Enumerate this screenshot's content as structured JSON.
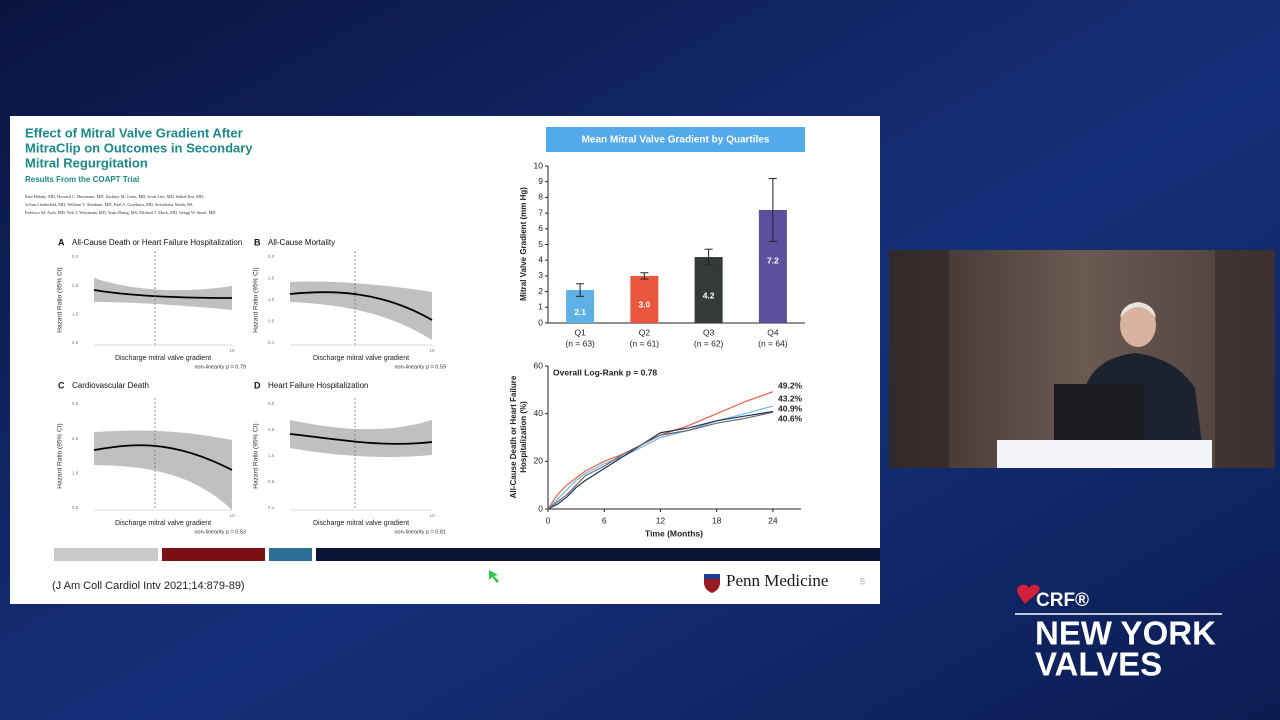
{
  "slide": {
    "title_lines": [
      "Effect of Mitral Valve Gradient After",
      "MitraClip on Outcomes in Secondary",
      "Mitral Regurgitation"
    ],
    "subtitle": "Results From the COAPT Trial",
    "authors": [
      "Kim Halaby, MD, Howard C. Herrmann, MD, Zachary M. Gertz, MD, Scott Lim, MD, Saibal Kar, MD,",
      "JoAnn Lindenfeld, MD, William T. Abraham, MD, Paul A. Grayburn, MD, Suveeksha Naidu, BS,",
      "Federico M. Asch, MD, Neil J. Weissman, MD, Yuan Zhang, MS, Michael J. Mack, MD, Gregg W. Stone, MD"
    ],
    "panels": [
      {
        "letter": "A",
        "title": "All-Cause Death or Heart Failure Hospitalization",
        "y_label": "Hazard Ratio (95% CI)",
        "x_label": "Discharge mitral valve gradient",
        "note": "non-linearity p = 0.79",
        "y_tick_labels": [
          "5.0",
          "2.5",
          "1.0",
          "0.5"
        ],
        "x_tick_labels": [
          "10"
        ]
      },
      {
        "letter": "B",
        "title": "All-Cause Mortality",
        "y_label": "Hazard Ratio (95% CI)",
        "x_label": "Discharge mitral valve gradient",
        "note": "non-linearity p = 0.59",
        "y_tick_labels": [
          "5.0",
          "2.5",
          "1.0",
          "0.5",
          "0.1"
        ],
        "x_tick_labels": [
          "10"
        ]
      },
      {
        "letter": "C",
        "title": "Cardiovascular Death",
        "y_label": "Hazard Ratio (95% CI)",
        "x_label": "Discharge mitral valve gradient",
        "note": "non-linearity p = 0.53",
        "y_tick_labels": [
          "5.0",
          "2.5",
          "1.0",
          "0.5"
        ],
        "x_tick_labels": [
          "10"
        ]
      },
      {
        "letter": "D",
        "title": "Heart Failure Hospitalization",
        "y_label": "Hazard Ratio (95% CI)",
        "x_label": "Discharge mitral valve gradient",
        "note": "non-linearity p = 0.81",
        "y_tick_labels": [
          "5.0",
          "2.5",
          "1.0",
          "0.5",
          "0.1"
        ],
        "x_tick_labels": [
          "10"
        ]
      }
    ],
    "bar_chart": {
      "title": "Mean Mitral Valve Gradient by Quartiles",
      "y_label": "Mitral Valve Gradient (mm Hg)",
      "ylim": [
        0,
        10
      ],
      "yticks": [
        0,
        1,
        2,
        3,
        4,
        5,
        6,
        7,
        8,
        9,
        10
      ],
      "categories": [
        "Q1",
        "Q2",
        "Q3",
        "Q4"
      ],
      "sublabels": [
        "(n = 63)",
        "(n = 61)",
        "(n = 62)",
        "(n = 64)"
      ],
      "values": [
        2.1,
        3.0,
        4.2,
        7.2
      ],
      "value_labels": [
        "2.1",
        "3.0",
        "4.2",
        "7.2"
      ],
      "errors": [
        0.4,
        0.2,
        0.5,
        2.0
      ],
      "colors": [
        "#5db1e4",
        "#e9573f",
        "#34393a",
        "#5b4f9e"
      ]
    },
    "km_chart": {
      "annotation": "Overall Log-Rank p = 0.78",
      "y_label_lines": [
        "All-Cause Death or Heart Failure",
        "Hospitalization (%)"
      ],
      "x_label": "Time (Months)",
      "xlim": [
        0,
        27
      ],
      "ylim": [
        0,
        60
      ],
      "xticks": [
        0,
        6,
        12,
        18,
        24
      ],
      "yticks": [
        0,
        20,
        40,
        60
      ],
      "x": [
        0,
        1,
        2,
        3,
        4,
        6,
        8,
        10,
        12,
        15,
        18,
        21,
        24
      ],
      "series": [
        {
          "color": "#e8603f",
          "values": [
            0,
            6,
            10,
            13,
            16,
            20,
            23,
            27,
            31,
            35,
            40,
            45,
            49.2
          ]
        },
        {
          "color": "#6fb8e6",
          "values": [
            0,
            4,
            8,
            12,
            15,
            19,
            22,
            26,
            30,
            33,
            37,
            40,
            43.2
          ]
        },
        {
          "color": "#1f2f55",
          "values": [
            0,
            2,
            5,
            9,
            12,
            17,
            22,
            27,
            32,
            34,
            37,
            39,
            40.9
          ]
        },
        {
          "color": "#6a6a6a",
          "values": [
            0,
            3,
            6,
            10,
            14,
            18,
            23,
            27,
            31,
            33,
            36,
            38,
            40.6
          ]
        }
      ],
      "end_labels": [
        "49.2%",
        "43.2%",
        "40.9%",
        "40.6%"
      ]
    },
    "citation": "(J Am Coll Cardiol Intv 2021;14:879-89)",
    "institution": "Penn Medicine",
    "page_number": "5"
  },
  "logo": {
    "brand": "CRF®",
    "line1": "NEW YORK",
    "line2": "VALVES"
  }
}
